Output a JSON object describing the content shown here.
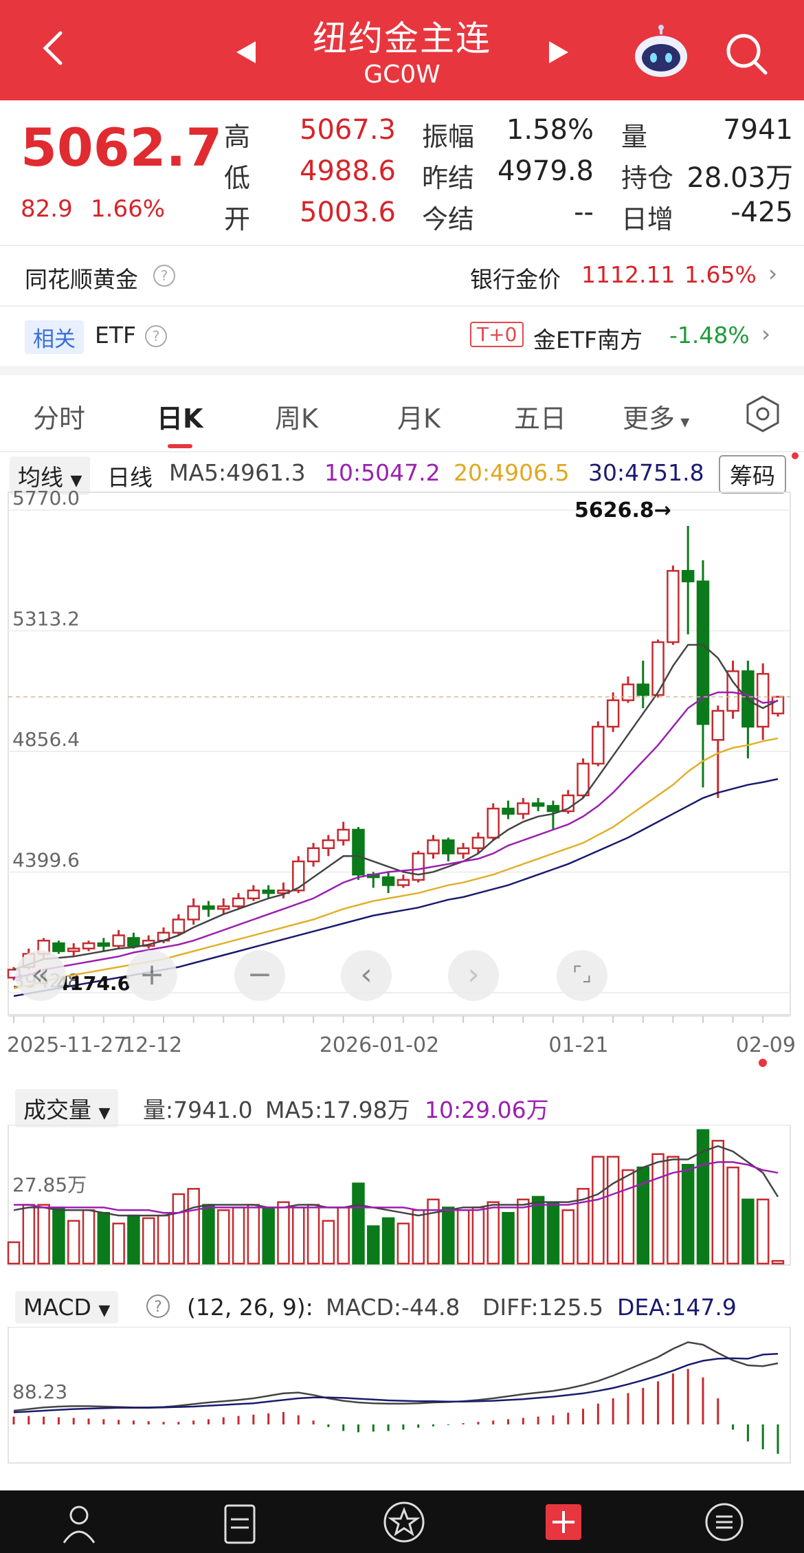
{
  "header": {
    "title": "纽约金主连",
    "code": "GC0W",
    "colors": {
      "bg": "#e8363e"
    }
  },
  "quote": {
    "last": "5062.7",
    "change": "82.9",
    "change_pct": "1.66%",
    "fields": [
      {
        "label": "高",
        "value": "5067.3",
        "color": "#d6242a"
      },
      {
        "label": "低",
        "value": "4988.6",
        "color": "#d6242a"
      },
      {
        "label": "开",
        "value": "5003.6",
        "color": "#d6242a"
      },
      {
        "label": "振幅",
        "value": "1.58%",
        "color": "#222"
      },
      {
        "label": "昨结",
        "value": "4979.8",
        "color": "#222"
      },
      {
        "label": "今结",
        "value": "--",
        "color": "#222"
      },
      {
        "label": "量",
        "value": "7941",
        "color": "#222"
      },
      {
        "label": "持仓",
        "value": "28.03万",
        "color": "#222"
      },
      {
        "label": "日增",
        "value": "-425",
        "color": "#222"
      }
    ]
  },
  "info_rows": {
    "gold_label": "同花顺黄金",
    "bank_label": "银行金价",
    "bank_value": "1112.11",
    "bank_pct": "1.65%",
    "related_tag": "相关",
    "etf_label": "ETF",
    "t0_tag": "T+0",
    "etf_name": "金ETF南方",
    "etf_pct": "-1.48%"
  },
  "tabs": [
    "分时",
    "日K",
    "周K",
    "月K",
    "五日",
    "更多"
  ],
  "active_tab": 1,
  "ma_bar": {
    "dropdown": "均线",
    "period": "日线",
    "ma5": "MA5:4961.3",
    "ma10": "10:5047.2",
    "ma20": "20:4906.5",
    "ma30": "30:4751.8",
    "chip_button": "筹码",
    "colors": {
      "ma5": "#333333",
      "ma10": "#9b1fb0",
      "ma20": "#e0b02a",
      "ma30": "#1a1a6e"
    }
  },
  "chart_data": [
    {
      "type": "candlestick",
      "y_ticks": [
        "5770.0",
        "5313.2",
        "4856.4",
        "4399.6",
        "3942.8"
      ],
      "ylim": [
        3942.8,
        5770.0
      ],
      "x_ticks": [
        "2025-11-27",
        "12-12",
        "2026-01-02",
        "01-21",
        "02-09"
      ],
      "max_label": "5626.8→",
      "min_label": "4174.6",
      "candles": [
        [
          4000,
          4030,
          3990,
          4040
        ],
        [
          4040,
          4090,
          4030,
          4110
        ],
        [
          4090,
          4140,
          4070,
          4150
        ],
        [
          4130,
          4100,
          4090,
          4140
        ],
        [
          4100,
          4110,
          4080,
          4130
        ],
        [
          4110,
          4130,
          4100,
          4140
        ],
        [
          4130,
          4120,
          4100,
          4150
        ],
        [
          4120,
          4160,
          4110,
          4180
        ],
        [
          4150,
          4120,
          4110,
          4170
        ],
        [
          4120,
          4140,
          4110,
          4160
        ],
        [
          4140,
          4170,
          4130,
          4190
        ],
        [
          4170,
          4220,
          4160,
          4240
        ],
        [
          4220,
          4270,
          4200,
          4300
        ],
        [
          4270,
          4260,
          4230,
          4290
        ],
        [
          4260,
          4270,
          4240,
          4300
        ],
        [
          4270,
          4300,
          4260,
          4320
        ],
        [
          4300,
          4330,
          4290,
          4350
        ],
        [
          4330,
          4320,
          4300,
          4350
        ],
        [
          4320,
          4330,
          4300,
          4360
        ],
        [
          4330,
          4440,
          4320,
          4460
        ],
        [
          4440,
          4490,
          4420,
          4510
        ],
        [
          4490,
          4520,
          4460,
          4540
        ],
        [
          4520,
          4560,
          4500,
          4590
        ],
        [
          4560,
          4390,
          4370,
          4570
        ],
        [
          4390,
          4380,
          4340,
          4400
        ],
        [
          4380,
          4350,
          4320,
          4400
        ],
        [
          4350,
          4370,
          4340,
          4390
        ],
        [
          4370,
          4470,
          4360,
          4480
        ],
        [
          4470,
          4520,
          4450,
          4540
        ],
        [
          4520,
          4470,
          4440,
          4530
        ],
        [
          4470,
          4490,
          4450,
          4510
        ],
        [
          4490,
          4530,
          4470,
          4550
        ],
        [
          4530,
          4640,
          4520,
          4660
        ],
        [
          4640,
          4620,
          4600,
          4670
        ],
        [
          4620,
          4660,
          4600,
          4680
        ],
        [
          4660,
          4650,
          4630,
          4680
        ],
        [
          4650,
          4630,
          4560,
          4670
        ],
        [
          4630,
          4690,
          4620,
          4710
        ],
        [
          4690,
          4810,
          4680,
          4830
        ],
        [
          4810,
          4950,
          4800,
          4970
        ],
        [
          4950,
          5050,
          4930,
          5080
        ],
        [
          5050,
          5110,
          5040,
          5140
        ],
        [
          5110,
          5070,
          5020,
          5200
        ],
        [
          5070,
          5270,
          5060,
          5280
        ],
        [
          5270,
          5540,
          5260,
          5560
        ],
        [
          5540,
          5500,
          5300,
          5710
        ],
        [
          5500,
          4960,
          4720,
          5580
        ],
        [
          4900,
          5010,
          4680,
          5030
        ],
        [
          5010,
          5160,
          4980,
          5200
        ],
        [
          5160,
          4950,
          4830,
          5200
        ],
        [
          4950,
          5150,
          4900,
          5190
        ],
        [
          5000,
          5063,
          4988,
          5067
        ]
      ],
      "ma5": [
        4030,
        4050,
        4070,
        4075,
        4080,
        4090,
        4100,
        4110,
        4115,
        4125,
        4140,
        4160,
        4190,
        4215,
        4240,
        4260,
        4280,
        4300,
        4315,
        4340,
        4380,
        4420,
        4460,
        4460,
        4440,
        4420,
        4400,
        4390,
        4400,
        4420,
        4440,
        4470,
        4520,
        4560,
        4590,
        4610,
        4620,
        4640,
        4680,
        4760,
        4840,
        4920,
        5000,
        5080,
        5180,
        5260,
        5260,
        5210,
        5120,
        5050,
        5020,
        5050
      ],
      "ma10": [
        4000,
        4010,
        4030,
        4040,
        4050,
        4060,
        4070,
        4080,
        4095,
        4105,
        4115,
        4125,
        4140,
        4160,
        4180,
        4200,
        4220,
        4240,
        4260,
        4280,
        4300,
        4330,
        4360,
        4380,
        4390,
        4400,
        4405,
        4410,
        4420,
        4430,
        4440,
        4450,
        4470,
        4500,
        4520,
        4540,
        4560,
        4580,
        4610,
        4650,
        4700,
        4760,
        4820,
        4880,
        4950,
        5020,
        5060,
        5080,
        5080,
        5070,
        5040,
        5047
      ],
      "ma20": [
        3960,
        3970,
        3985,
        4000,
        4010,
        4020,
        4030,
        4040,
        4050,
        4060,
        4070,
        4085,
        4100,
        4115,
        4130,
        4145,
        4160,
        4175,
        4190,
        4205,
        4220,
        4240,
        4260,
        4275,
        4290,
        4300,
        4310,
        4320,
        4335,
        4350,
        4360,
        4375,
        4390,
        4410,
        4430,
        4450,
        4470,
        4490,
        4510,
        4540,
        4570,
        4610,
        4650,
        4690,
        4730,
        4780,
        4820,
        4850,
        4870,
        4880,
        4895,
        4906
      ],
      "ma30": [
        3930,
        3940,
        3950,
        3960,
        3970,
        3980,
        3990,
        4000,
        4010,
        4020,
        4030,
        4040,
        4055,
        4070,
        4085,
        4100,
        4115,
        4130,
        4145,
        4160,
        4175,
        4190,
        4205,
        4220,
        4235,
        4245,
        4255,
        4265,
        4280,
        4295,
        4305,
        4320,
        4335,
        4350,
        4370,
        4390,
        4410,
        4430,
        4455,
        4480,
        4505,
        4530,
        4560,
        4590,
        4620,
        4650,
        4680,
        4700,
        4715,
        4730,
        4740,
        4752
      ]
    },
    {
      "type": "bar",
      "title": "成交量",
      "y_tick": "27.85万",
      "vol_label": "量:7941.0",
      "ma5_label": "MA5:17.98万",
      "ma10_label": "10:29.06万",
      "values": [
        8,
        22,
        22,
        21,
        16,
        20,
        19,
        15,
        18,
        17,
        18,
        26,
        28,
        22,
        20,
        21,
        22,
        21,
        23,
        21,
        22,
        16,
        21,
        30,
        14,
        17,
        15,
        20,
        24,
        21,
        20,
        21,
        23,
        19,
        24,
        25,
        23,
        20,
        28,
        40,
        40,
        35,
        36,
        41,
        40,
        37,
        50,
        46,
        36,
        24,
        24,
        1
      ],
      "ma5": [
        20,
        21,
        21,
        20,
        20,
        20,
        19,
        18,
        18,
        18,
        18,
        19,
        21,
        22,
        22,
        22,
        22,
        21,
        21,
        22,
        22,
        21,
        21,
        22,
        21,
        20,
        19,
        18,
        19,
        20,
        21,
        21,
        22,
        22,
        22,
        23,
        23,
        23,
        24,
        26,
        30,
        33,
        36,
        38,
        39,
        39,
        42,
        44,
        42,
        38,
        34,
        25
      ],
      "ma10": [
        22,
        22,
        21,
        21,
        21,
        21,
        21,
        20,
        20,
        20,
        19,
        19,
        20,
        21,
        21,
        21,
        21,
        21,
        21,
        21,
        21,
        21,
        21,
        21,
        21,
        21,
        21,
        20,
        20,
        20,
        20,
        20,
        21,
        21,
        21,
        22,
        22,
        22,
        23,
        24,
        26,
        28,
        30,
        32,
        34,
        35,
        37,
        38,
        38,
        37,
        35,
        34
      ]
    },
    {
      "type": "bar",
      "title": "MACD",
      "params": "(12, 26, 9):",
      "macd_label": "MACD:-44.8",
      "diff_label": "DIFF:125.5",
      "dea_label": "DEA:147.9",
      "y_tick": "88.23",
      "hist": [
        12,
        13,
        12,
        11,
        10,
        9,
        8,
        7,
        6,
        5,
        4,
        4,
        6,
        8,
        11,
        13,
        15,
        17,
        19,
        14,
        6,
        -4,
        -10,
        -12,
        -11,
        -10,
        -8,
        -5,
        -3,
        -1,
        2,
        4,
        6,
        8,
        10,
        12,
        14,
        18,
        24,
        32,
        40,
        48,
        56,
        66,
        78,
        85,
        72,
        40,
        -8,
        -26,
        -38,
        -45
      ],
      "diff": [
        10,
        14,
        18,
        20,
        21,
        21,
        20,
        19,
        18,
        18,
        19,
        22,
        26,
        30,
        33,
        36,
        40,
        46,
        52,
        54,
        48,
        40,
        34,
        30,
        28,
        27,
        27,
        28,
        30,
        31,
        33,
        36,
        40,
        45,
        50,
        54,
        58,
        64,
        72,
        82,
        95,
        110,
        125,
        140,
        160,
        176,
        170,
        150,
        132,
        120,
        118,
        125
      ],
      "dea": [
        6,
        8,
        10,
        12,
        14,
        15,
        16,
        17,
        17,
        17,
        18,
        19,
        20,
        22,
        24,
        26,
        28,
        32,
        36,
        40,
        42,
        42,
        41,
        39,
        37,
        35,
        34,
        33,
        33,
        32,
        32,
        33,
        34,
        36,
        38,
        41,
        44,
        48,
        52,
        58,
        65,
        74,
        84,
        95,
        107,
        121,
        131,
        136,
        137,
        136,
        146,
        148
      ]
    }
  ],
  "controls": [
    "«",
    "+",
    "−",
    "‹",
    "›",
    "⌜⌟"
  ],
  "bottom_nav": {
    "icons": [
      "user-icon",
      "document-icon",
      "star-badge-icon",
      "add-box-icon",
      "menu-circle-icon"
    ]
  }
}
